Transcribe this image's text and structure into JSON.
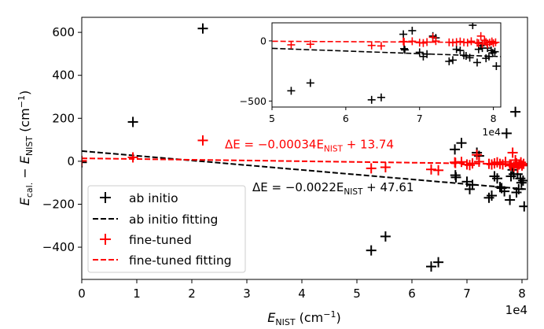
{
  "chart_data": {
    "type": "scatter",
    "title": "",
    "xlabel": {
      "main": "E",
      "sub": "NIST",
      "unit": " (cm",
      "sup": "−1",
      "close": ")"
    },
    "ylabel": {
      "e1": "E",
      "sub1": "cal.",
      "mid": " − ",
      "e2": "E",
      "sub2": "NIST",
      "unit": " (cm",
      "sup": "−1",
      "close": ")"
    },
    "xlim": [
      0,
      81000
    ],
    "ylim": [
      -550,
      670
    ],
    "x_ticks": [
      0,
      10000,
      20000,
      30000,
      40000,
      50000,
      60000,
      70000,
      80000
    ],
    "x_tick_labels": [
      "0",
      "1",
      "2",
      "3",
      "4",
      "5",
      "6",
      "7",
      "8"
    ],
    "x_offset_label": "1e4",
    "y_ticks": [
      -400,
      -200,
      0,
      200,
      400,
      600
    ],
    "y_tick_labels": [
      "−400",
      "−200",
      "0",
      "200",
      "400",
      "600"
    ],
    "grid": false,
    "legend_position": "lower-left",
    "colors": {
      "ab_initio": "#000000",
      "fine_tuned": "#ff0000"
    },
    "series": [
      {
        "name": "ab initio",
        "marker": "plus",
        "color": "#000000",
        "points": [
          [
            0,
            -5
          ],
          [
            9300,
            183
          ],
          [
            22000,
            618
          ],
          [
            52600,
            -415
          ],
          [
            55200,
            -350
          ],
          [
            63500,
            -490
          ],
          [
            64800,
            -470
          ],
          [
            67800,
            55
          ],
          [
            67900,
            -65
          ],
          [
            68000,
            -75
          ],
          [
            69000,
            85
          ],
          [
            70000,
            -95
          ],
          [
            70500,
            -130
          ],
          [
            71000,
            -110
          ],
          [
            71800,
            40
          ],
          [
            72200,
            25
          ],
          [
            74000,
            -170
          ],
          [
            74500,
            -160
          ],
          [
            75000,
            -70
          ],
          [
            75500,
            -80
          ],
          [
            76000,
            -120
          ],
          [
            76300,
            -125
          ],
          [
            76800,
            -140
          ],
          [
            77200,
            130
          ],
          [
            77800,
            -180
          ],
          [
            78000,
            -70
          ],
          [
            78300,
            -40
          ],
          [
            78500,
            -60
          ],
          [
            78800,
            230
          ],
          [
            79000,
            -145
          ],
          [
            79200,
            -60
          ],
          [
            79400,
            -130
          ],
          [
            79700,
            -80
          ],
          [
            79900,
            -100
          ],
          [
            80200,
            -90
          ],
          [
            80400,
            -210
          ]
        ]
      },
      {
        "name": "ab initio fitting",
        "type": "line",
        "style": "dashed",
        "color": "#000000",
        "slope": -0.0022,
        "intercept": 47.61,
        "x_range": [
          0,
          81000
        ]
      },
      {
        "name": "fine-tuned",
        "marker": "plus",
        "color": "#ff0000",
        "points": [
          [
            0,
            2
          ],
          [
            9300,
            18
          ],
          [
            22000,
            97
          ],
          [
            52600,
            -33
          ],
          [
            55200,
            -28
          ],
          [
            63500,
            -38
          ],
          [
            64800,
            -42
          ],
          [
            67800,
            -5
          ],
          [
            67900,
            -8
          ],
          [
            69000,
            -3
          ],
          [
            70000,
            -15
          ],
          [
            70500,
            -18
          ],
          [
            71000,
            -10
          ],
          [
            71800,
            30
          ],
          [
            72200,
            -2
          ],
          [
            74000,
            -12
          ],
          [
            74500,
            -15
          ],
          [
            75000,
            -10
          ],
          [
            75500,
            -5
          ],
          [
            76000,
            -12
          ],
          [
            76500,
            -15
          ],
          [
            77000,
            -3
          ],
          [
            77800,
            -15
          ],
          [
            78000,
            -20
          ],
          [
            78300,
            40
          ],
          [
            78500,
            -25
          ],
          [
            78800,
            5
          ],
          [
            79000,
            -10
          ],
          [
            79200,
            -30
          ],
          [
            79500,
            -15
          ],
          [
            79800,
            -5
          ],
          [
            80000,
            -20
          ],
          [
            80300,
            -12
          ]
        ]
      },
      {
        "name": "fine-tuned fitting",
        "type": "line",
        "style": "dashed",
        "color": "#ff0000",
        "slope": -0.00034,
        "intercept": 13.74,
        "x_range": [
          0,
          81000
        ]
      }
    ],
    "annotations": [
      {
        "id": "fine",
        "color": "#ff0000",
        "data_x": 26000,
        "data_y": 60,
        "parts": [
          "ΔE = −0.00034E",
          "NIST",
          " + 13.74"
        ]
      },
      {
        "id": "ab",
        "color": "#000000",
        "data_x": 31000,
        "data_y": -140,
        "parts": [
          "ΔE = −0.0022E",
          "NIST",
          " + 47.61"
        ]
      }
    ],
    "inset": {
      "xlim": [
        50000,
        81000
      ],
      "ylim": [
        -550,
        150
      ],
      "x_ticks": [
        50000,
        60000,
        70000,
        80000
      ],
      "x_tick_labels": [
        "5",
        "6",
        "7",
        "8"
      ],
      "x_offset_label": "1e4",
      "y_ticks": [
        -500,
        0
      ],
      "y_tick_labels": [
        "−500",
        "0"
      ]
    }
  }
}
